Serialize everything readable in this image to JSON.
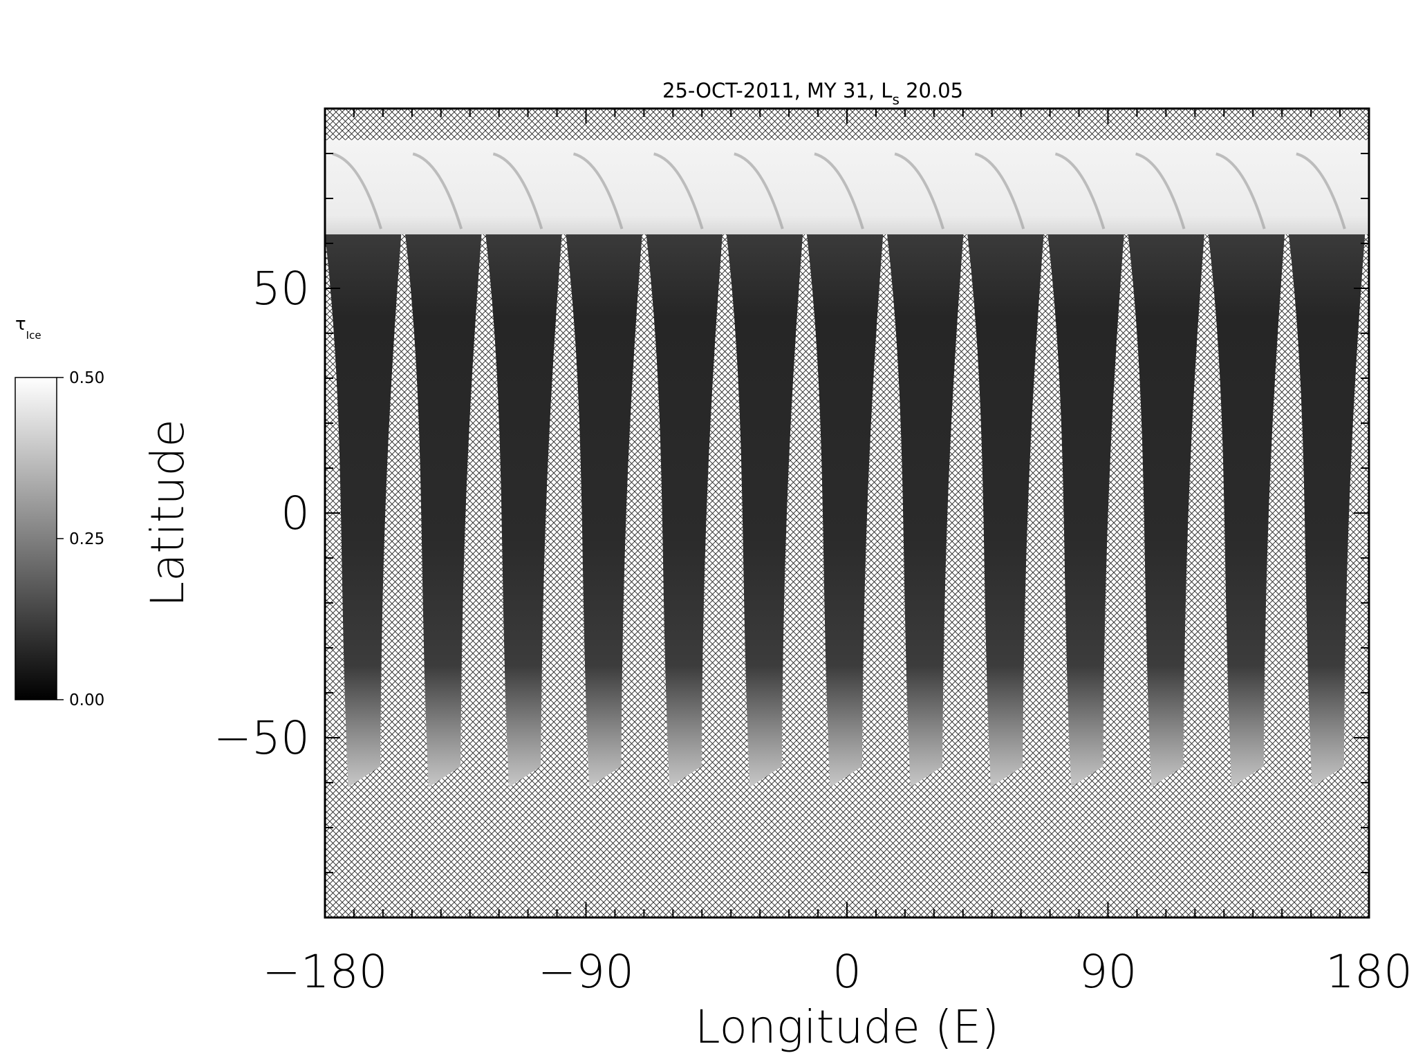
{
  "chart_data": {
    "type": "heatmap",
    "title_main": "25-OCT-2011, MY 31,  L",
    "title_sub": "s",
    "title_value": " 20.05",
    "xlabel": "Longitude (E)",
    "ylabel": "Latitude",
    "xlim": [
      -180,
      180
    ],
    "ylim": [
      -90,
      90
    ],
    "xticks": [
      -180,
      -90,
      0,
      90,
      180
    ],
    "xtick_labels": [
      "−180",
      "−90",
      "0",
      "90",
      "180"
    ],
    "yticks": [
      -50,
      0,
      50
    ],
    "ytick_labels": [
      "−50",
      "0",
      "50"
    ],
    "x_minor_step": 10,
    "y_minor_step": 10,
    "no_data_pattern": "crosshatch",
    "swath_count": 13,
    "swath_top_latitude": 62,
    "swath_bottom_latitude": -61,
    "polar_cap_latitude_range": [
      62,
      83
    ],
    "colorbar": {
      "label": "τ",
      "label_sub": "Ice",
      "min": 0.0,
      "max": 0.5,
      "ticks": [
        0.0,
        0.25,
        0.5
      ],
      "tick_labels": [
        "0.00",
        "0.25",
        "0.50"
      ],
      "colormap": "grayscale"
    }
  }
}
